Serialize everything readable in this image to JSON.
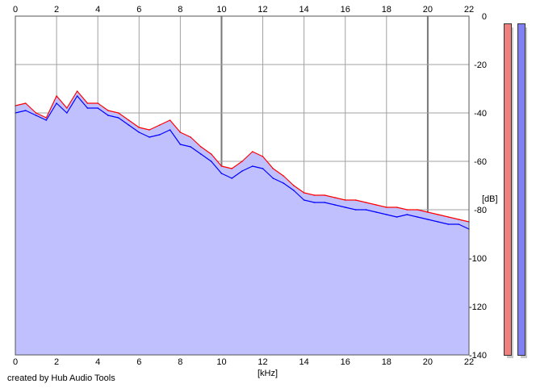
{
  "chart_data": {
    "type": "area",
    "xlabel": "[kHz]",
    "ylabel": "[dB]",
    "xlim": [
      0,
      22
    ],
    "ylim": [
      -140,
      0
    ],
    "x_ticks": [
      0,
      2,
      4,
      6,
      8,
      10,
      12,
      14,
      16,
      18,
      20,
      22
    ],
    "y_ticks": [
      0,
      -20,
      -40,
      -60,
      -80,
      -100,
      -120,
      -140
    ],
    "y_tick_labels": [
      "0",
      "-20",
      "-40",
      "-60",
      "-80",
      "-100",
      "-120",
      "-140"
    ],
    "grid": true,
    "series": [
      {
        "color": "#ff0000",
        "x": [
          0,
          0.5,
          1,
          1.5,
          2,
          2.5,
          3,
          3.5,
          4,
          4.5,
          5,
          5.5,
          6,
          6.5,
          7,
          7.5,
          8,
          8.5,
          9,
          9.5,
          10,
          10.5,
          11,
          11.5,
          12,
          12.5,
          13,
          13.5,
          14,
          14.5,
          15,
          15.5,
          16,
          16.5,
          17,
          17.5,
          18,
          18.5,
          19,
          19.5,
          20,
          20.5,
          21,
          21.5,
          22
        ],
        "values": [
          -37,
          -36,
          -40,
          -42,
          -33,
          -38,
          -31,
          -36,
          -36,
          -39,
          -40,
          -43,
          -46,
          -47,
          -45,
          -43,
          -48,
          -50,
          -54,
          -57,
          -62,
          -63,
          -60,
          -56,
          -58,
          -63,
          -66,
          -70,
          -73,
          -74,
          -74,
          -75,
          -76,
          -76,
          -77,
          -78,
          -79,
          -79,
          -80,
          -80,
          -81,
          -82,
          -83,
          -84,
          -85
        ]
      },
      {
        "color": "#0000ff",
        "x": [
          0,
          0.5,
          1,
          1.5,
          2,
          2.5,
          3,
          3.5,
          4,
          4.5,
          5,
          5.5,
          6,
          6.5,
          7,
          7.5,
          8,
          8.5,
          9,
          9.5,
          10,
          10.5,
          11,
          11.5,
          12,
          12.5,
          13,
          13.5,
          14,
          14.5,
          15,
          15.5,
          16,
          16.5,
          17,
          17.5,
          18,
          18.5,
          19,
          19.5,
          20,
          20.5,
          21,
          21.5,
          22
        ],
        "values": [
          -40,
          -39,
          -41,
          -43,
          -36,
          -40,
          -33,
          -38,
          -38,
          -41,
          -42,
          -45,
          -48,
          -50,
          -49,
          -47,
          -53,
          -54,
          -57,
          -60,
          -65,
          -67,
          -64,
          -62,
          -63,
          -67,
          -69,
          -72,
          -76,
          -77,
          -77,
          -78,
          -79,
          -80,
          -80,
          -81,
          -82,
          -83,
          -82,
          -83,
          -84,
          -85,
          -86,
          -86,
          -88
        ]
      }
    ],
    "fill_color": "#c0c0ff",
    "meters": [
      {
        "color": "#f08080",
        "level": 0.98
      },
      {
        "color": "#8080f0",
        "level": 0.98
      }
    ]
  },
  "credit": "created by Hub Audio Tools"
}
